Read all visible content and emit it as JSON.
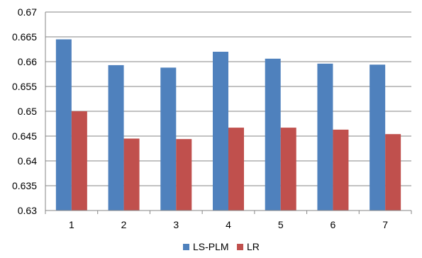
{
  "chart_data": {
    "type": "bar",
    "categories": [
      "1",
      "2",
      "3",
      "4",
      "5",
      "6",
      "7"
    ],
    "series": [
      {
        "name": "LS-PLM",
        "color": "#4F81BD",
        "values": [
          0.6645,
          0.6593,
          0.6588,
          0.662,
          0.6606,
          0.6596,
          0.6594
        ]
      },
      {
        "name": "LR",
        "color": "#C0504D",
        "values": [
          0.65,
          0.6445,
          0.6444,
          0.6467,
          0.6467,
          0.6463,
          0.6454
        ]
      }
    ],
    "ylim": [
      0.63,
      0.67
    ],
    "yticks": [
      "0.63",
      "0.635",
      "0.64",
      "0.645",
      "0.65",
      "0.655",
      "0.66",
      "0.665",
      "0.67"
    ],
    "grid": true,
    "legend": "bottom"
  }
}
